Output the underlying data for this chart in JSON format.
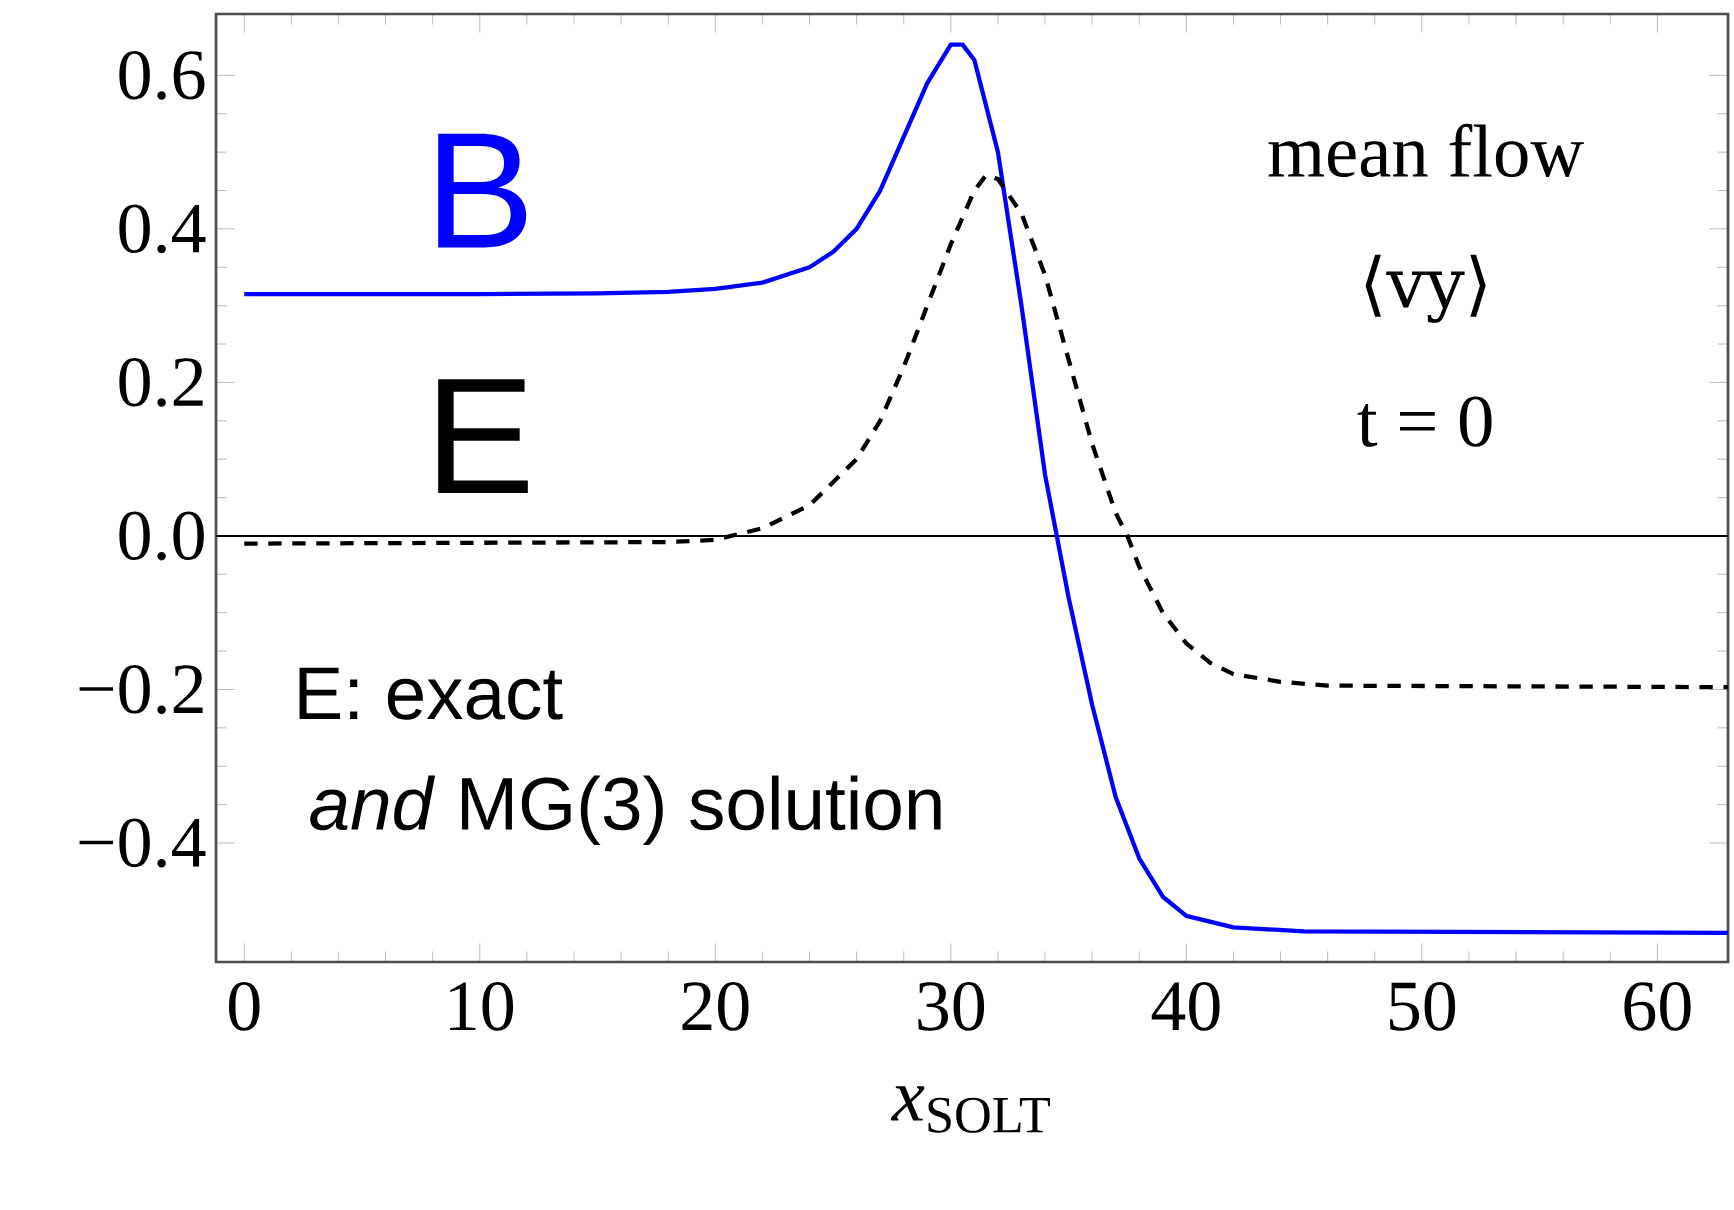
{
  "chart_data": {
    "type": "line",
    "xlabel": "*x*$_{SOLT}$",
    "annotations": [
      "mean flow",
      "⟨vy⟩",
      "t = 0",
      "E: exact",
      "*and* MG(3) solution"
    ],
    "series": [
      {
        "name": "B",
        "color": "#0000ff",
        "line_style": "solid",
        "x": [
          0,
          10,
          15,
          18,
          20,
          22,
          24,
          25,
          26,
          27,
          28,
          29,
          30,
          30.5,
          31,
          32,
          33,
          34,
          34.5,
          35,
          36,
          37,
          38,
          39,
          40,
          42,
          45,
          63
        ],
        "values": [
          0.315,
          0.315,
          0.316,
          0.318,
          0.322,
          0.33,
          0.35,
          0.37,
          0.4,
          0.45,
          0.52,
          0.59,
          0.64,
          0.64,
          0.62,
          0.5,
          0.3,
          0.08,
          0,
          -0.08,
          -0.22,
          -0.34,
          -0.42,
          -0.47,
          -0.495,
          -0.51,
          -0.515,
          -0.517
        ]
      },
      {
        "name": "E",
        "color": "#000000",
        "line_style": "dashed",
        "x": [
          0,
          18,
          20,
          22,
          24,
          26,
          27,
          28,
          29,
          30,
          31,
          31.5,
          32,
          33,
          34,
          35,
          36,
          37,
          37.5,
          38,
          39,
          40,
          41,
          42,
          44,
          46,
          63
        ],
        "values": [
          -0.01,
          -0.008,
          -0.005,
          0.01,
          0.04,
          0.1,
          0.15,
          0.22,
          0.3,
          0.38,
          0.45,
          0.47,
          0.465,
          0.42,
          0.34,
          0.23,
          0.12,
          0.03,
          0,
          -0.04,
          -0.1,
          -0.14,
          -0.165,
          -0.18,
          -0.19,
          -0.195,
          -0.197
        ]
      }
    ],
    "xlim": [
      -1.2,
      63
    ],
    "ylim": [
      -0.555,
      0.68
    ],
    "xticks": [
      0,
      10,
      20,
      30,
      40,
      50,
      60
    ],
    "yticks": [
      {
        "value": -0.4,
        "label": "−0.4"
      },
      {
        "value": -0.2,
        "label": "−0.2"
      },
      {
        "value": 0,
        "label": "0.0"
      },
      {
        "value": 0.2,
        "label": "0.2"
      },
      {
        "value": 0.4,
        "label": "0.4"
      },
      {
        "value": 0.6,
        "label": "0.6"
      }
    ],
    "ref_lines": [
      {
        "axis": "y",
        "value": 0,
        "color": "#000000"
      }
    ],
    "grid": false
  }
}
